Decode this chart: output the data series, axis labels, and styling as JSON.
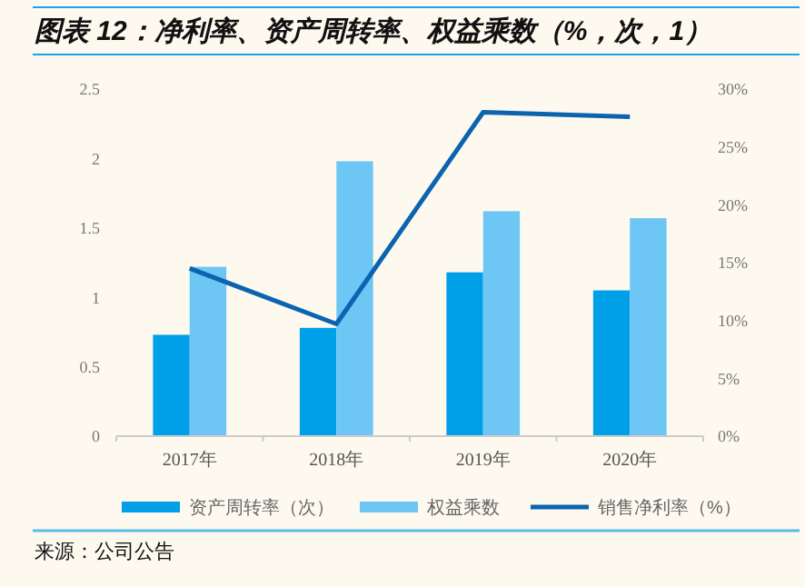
{
  "chart_data": {
    "type": "bar",
    "title": "图表 12：净利率、资产周转率、权益乘数（%，次，1）",
    "categories": [
      "2017年",
      "2018年",
      "2019年",
      "2020年"
    ],
    "series": [
      {
        "name": "资产周转率（次）",
        "color": "#00a0e9",
        "values": [
          0.73,
          0.78,
          1.18,
          1.05
        ]
      },
      {
        "name": "权益乘数",
        "color": "#6ec6f5",
        "values": [
          1.22,
          1.98,
          1.62,
          1.57
        ]
      },
      {
        "name": "销售净利率（%）",
        "type": "line",
        "axis": "y2",
        "color": "#0b64b0",
        "values": [
          14.5,
          9.7,
          28,
          27.6
        ]
      }
    ],
    "ylim": [
      0,
      2.5
    ],
    "yticks": [
      0,
      {
        "value": 0.5,
        "label": "0.5"
      },
      1,
      {
        "value": 1.5,
        "label": "1.5"
      },
      2,
      {
        "value": 2.5,
        "label": "2.5"
      }
    ],
    "y2lim": [
      0,
      30
    ],
    "y2ticks": [
      {
        "value": 0,
        "label": "0%"
      },
      {
        "value": 5,
        "label": "5%"
      },
      {
        "value": 10,
        "label": "10%"
      },
      {
        "value": 15,
        "label": "15%"
      },
      {
        "value": 20,
        "label": "20%"
      },
      {
        "value": 25,
        "label": "25%"
      },
      {
        "value": 30,
        "label": "30%"
      }
    ],
    "legend": "bottom",
    "grid": false,
    "annotations": [
      "来源：公司公告"
    ]
  }
}
